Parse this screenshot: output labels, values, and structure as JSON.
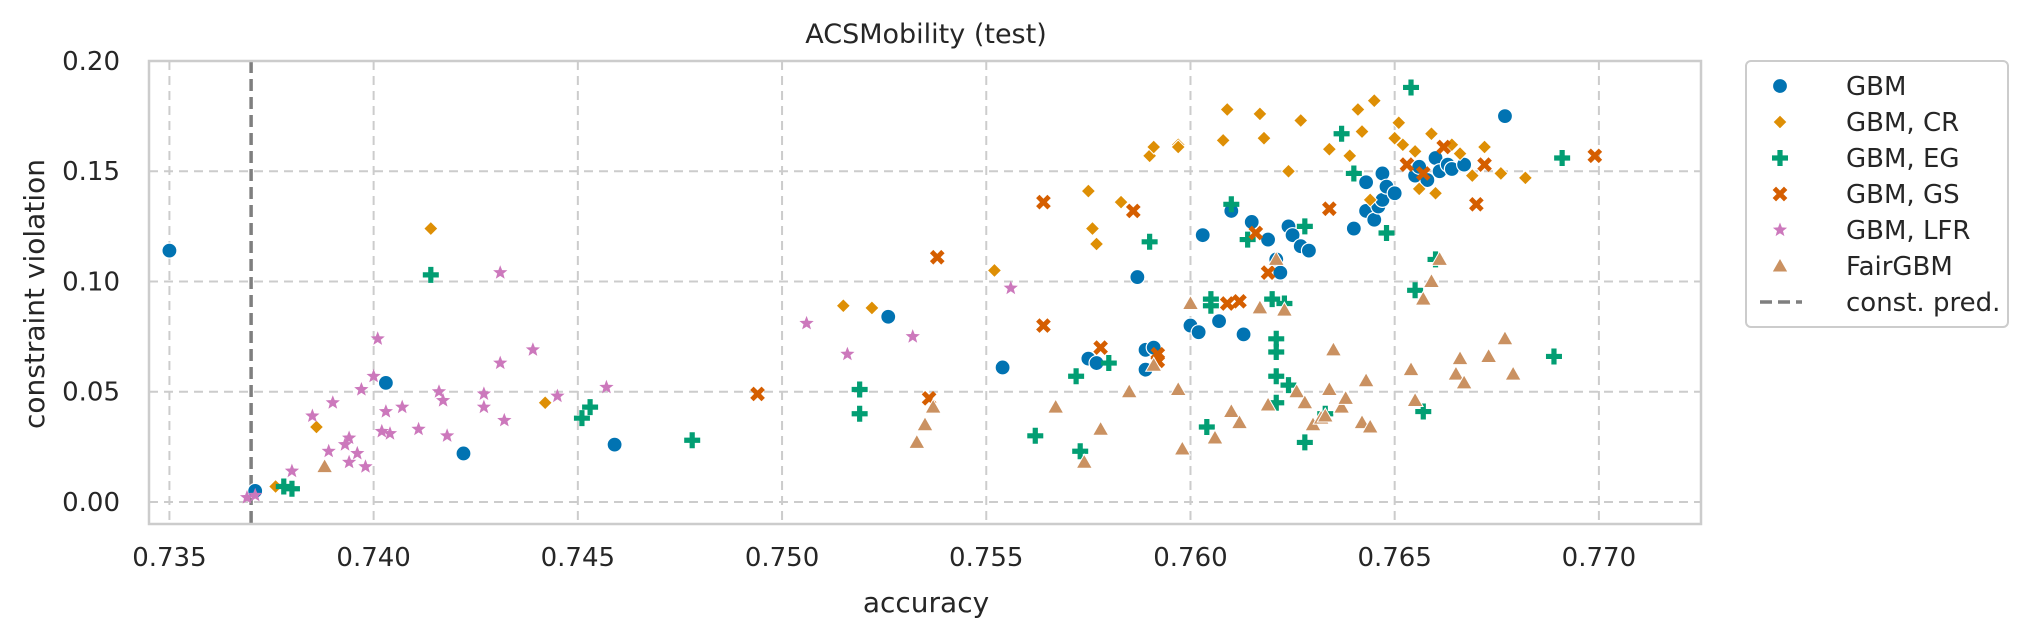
{
  "chart_data": {
    "type": "scatter",
    "title": "ACSMobility (test)",
    "xlabel": "accuracy",
    "ylabel": "constraint violation",
    "xlim": [
      0.7345,
      0.7725
    ],
    "ylim": [
      -0.01,
      0.2
    ],
    "xticks": [
      "0.735",
      "0.740",
      "0.745",
      "0.750",
      "0.755",
      "0.760",
      "0.765",
      "0.770"
    ],
    "xtick_values": [
      0.735,
      0.74,
      0.745,
      0.75,
      0.755,
      0.76,
      0.765,
      0.77
    ],
    "yticks": [
      "0.00",
      "0.05",
      "0.10",
      "0.15",
      "0.20"
    ],
    "ytick_values": [
      0.0,
      0.05,
      0.1,
      0.15,
      0.2
    ],
    "grid": true,
    "legend_position": "outside-right",
    "reference_line": {
      "name": "const. pred.",
      "x": 0.737,
      "color": "#7f7f7f"
    },
    "series": [
      {
        "name": "GBM",
        "marker": "circle",
        "color": "#0173b2",
        "points": [
          [
            0.735,
            0.114
          ],
          [
            0.7371,
            0.005
          ],
          [
            0.7403,
            0.054
          ],
          [
            0.7422,
            0.022
          ],
          [
            0.7459,
            0.026
          ],
          [
            0.7526,
            0.084
          ],
          [
            0.7554,
            0.061
          ],
          [
            0.7575,
            0.065
          ],
          [
            0.7577,
            0.063
          ],
          [
            0.7587,
            0.102
          ],
          [
            0.7589,
            0.069
          ],
          [
            0.7589,
            0.06
          ],
          [
            0.7591,
            0.07
          ],
          [
            0.76,
            0.08
          ],
          [
            0.7602,
            0.077
          ],
          [
            0.7603,
            0.121
          ],
          [
            0.7607,
            0.082
          ],
          [
            0.761,
            0.132
          ],
          [
            0.7613,
            0.076
          ],
          [
            0.7615,
            0.127
          ],
          [
            0.7619,
            0.119
          ],
          [
            0.7621,
            0.11
          ],
          [
            0.7622,
            0.104
          ],
          [
            0.7624,
            0.125
          ],
          [
            0.7625,
            0.121
          ],
          [
            0.7627,
            0.116
          ],
          [
            0.7629,
            0.114
          ],
          [
            0.764,
            0.124
          ],
          [
            0.7643,
            0.145
          ],
          [
            0.7643,
            0.132
          ],
          [
            0.7645,
            0.128
          ],
          [
            0.7646,
            0.134
          ],
          [
            0.7647,
            0.149
          ],
          [
            0.7647,
            0.137
          ],
          [
            0.7648,
            0.143
          ],
          [
            0.765,
            0.14
          ],
          [
            0.7655,
            0.148
          ],
          [
            0.7656,
            0.152
          ],
          [
            0.7658,
            0.146
          ],
          [
            0.766,
            0.156
          ],
          [
            0.7661,
            0.15
          ],
          [
            0.7663,
            0.153
          ],
          [
            0.7664,
            0.151
          ],
          [
            0.7667,
            0.153
          ],
          [
            0.7677,
            0.175
          ]
        ]
      },
      {
        "name": "GBM, CR",
        "marker": "diamond",
        "color": "#de8f05",
        "points": [
          [
            0.7376,
            0.007
          ],
          [
            0.7386,
            0.034
          ],
          [
            0.7414,
            0.124
          ],
          [
            0.7442,
            0.045
          ],
          [
            0.7515,
            0.089
          ],
          [
            0.7522,
            0.088
          ],
          [
            0.7552,
            0.105
          ],
          [
            0.7575,
            0.141
          ],
          [
            0.7576,
            0.124
          ],
          [
            0.7577,
            0.117
          ],
          [
            0.7583,
            0.136
          ],
          [
            0.759,
            0.157
          ],
          [
            0.7591,
            0.161
          ],
          [
            0.7597,
            0.162
          ],
          [
            0.7597,
            0.161
          ],
          [
            0.7608,
            0.164
          ],
          [
            0.7609,
            0.178
          ],
          [
            0.7617,
            0.176
          ],
          [
            0.7618,
            0.165
          ],
          [
            0.7624,
            0.15
          ],
          [
            0.7627,
            0.173
          ],
          [
            0.7634,
            0.16
          ],
          [
            0.7639,
            0.157
          ],
          [
            0.7641,
            0.178
          ],
          [
            0.7642,
            0.168
          ],
          [
            0.7644,
            0.137
          ],
          [
            0.7645,
            0.182
          ],
          [
            0.765,
            0.165
          ],
          [
            0.7651,
            0.172
          ],
          [
            0.7652,
            0.162
          ],
          [
            0.7655,
            0.159
          ],
          [
            0.7656,
            0.142
          ],
          [
            0.7659,
            0.167
          ],
          [
            0.766,
            0.14
          ],
          [
            0.7664,
            0.162
          ],
          [
            0.7666,
            0.158
          ],
          [
            0.7669,
            0.148
          ],
          [
            0.7672,
            0.161
          ],
          [
            0.7676,
            0.149
          ],
          [
            0.7682,
            0.147
          ]
        ]
      },
      {
        "name": "GBM, EG",
        "marker": "plus",
        "color": "#029e73",
        "points": [
          [
            0.7378,
            0.007
          ],
          [
            0.738,
            0.006
          ],
          [
            0.7414,
            0.103
          ],
          [
            0.7451,
            0.038
          ],
          [
            0.7453,
            0.043
          ],
          [
            0.7478,
            0.028
          ],
          [
            0.7519,
            0.051
          ],
          [
            0.7519,
            0.04
          ],
          [
            0.7562,
            0.03
          ],
          [
            0.7572,
            0.057
          ],
          [
            0.7573,
            0.023
          ],
          [
            0.758,
            0.063
          ],
          [
            0.759,
            0.118
          ],
          [
            0.7604,
            0.034
          ],
          [
            0.7605,
            0.092
          ],
          [
            0.7605,
            0.089
          ],
          [
            0.761,
            0.135
          ],
          [
            0.7614,
            0.119
          ],
          [
            0.762,
            0.092
          ],
          [
            0.7621,
            0.074
          ],
          [
            0.7621,
            0.068
          ],
          [
            0.7621,
            0.057
          ],
          [
            0.7621,
            0.045
          ],
          [
            0.7623,
            0.09
          ],
          [
            0.7624,
            0.053
          ],
          [
            0.7628,
            0.125
          ],
          [
            0.7628,
            0.027
          ],
          [
            0.7633,
            0.04
          ],
          [
            0.7637,
            0.167
          ],
          [
            0.764,
            0.149
          ],
          [
            0.7648,
            0.122
          ],
          [
            0.7654,
            0.188
          ],
          [
            0.7655,
            0.096
          ],
          [
            0.7657,
            0.041
          ],
          [
            0.766,
            0.11
          ],
          [
            0.7689,
            0.066
          ],
          [
            0.7691,
            0.156
          ]
        ]
      },
      {
        "name": "GBM, GS",
        "marker": "x",
        "color": "#d55e00",
        "points": [
          [
            0.7494,
            0.049
          ],
          [
            0.7536,
            0.047
          ],
          [
            0.7538,
            0.111
          ],
          [
            0.7564,
            0.136
          ],
          [
            0.7564,
            0.08
          ],
          [
            0.7578,
            0.07
          ],
          [
            0.7586,
            0.132
          ],
          [
            0.7592,
            0.067
          ],
          [
            0.7592,
            0.064
          ],
          [
            0.7609,
            0.09
          ],
          [
            0.7612,
            0.091
          ],
          [
            0.7616,
            0.122
          ],
          [
            0.7619,
            0.104
          ],
          [
            0.7634,
            0.133
          ],
          [
            0.7653,
            0.153
          ],
          [
            0.7657,
            0.149
          ],
          [
            0.7662,
            0.161
          ],
          [
            0.767,
            0.135
          ],
          [
            0.7672,
            0.153
          ],
          [
            0.7699,
            0.157
          ]
        ]
      },
      {
        "name": "GBM, LFR",
        "marker": "star",
        "color": "#cc78bc",
        "points": [
          [
            0.7369,
            0.002
          ],
          [
            0.7371,
            0.003
          ],
          [
            0.738,
            0.014
          ],
          [
            0.7385,
            0.039
          ],
          [
            0.7389,
            0.023
          ],
          [
            0.739,
            0.045
          ],
          [
            0.7393,
            0.026
          ],
          [
            0.7394,
            0.029
          ],
          [
            0.7394,
            0.018
          ],
          [
            0.7396,
            0.022
          ],
          [
            0.7397,
            0.051
          ],
          [
            0.7398,
            0.016
          ],
          [
            0.74,
            0.057
          ],
          [
            0.7401,
            0.074
          ],
          [
            0.7402,
            0.032
          ],
          [
            0.7403,
            0.041
          ],
          [
            0.7404,
            0.031
          ],
          [
            0.7407,
            0.043
          ],
          [
            0.7411,
            0.033
          ],
          [
            0.7416,
            0.05
          ],
          [
            0.7417,
            0.046
          ],
          [
            0.7418,
            0.03
          ],
          [
            0.7427,
            0.049
          ],
          [
            0.7427,
            0.043
          ],
          [
            0.7431,
            0.104
          ],
          [
            0.7431,
            0.063
          ],
          [
            0.7432,
            0.037
          ],
          [
            0.7439,
            0.069
          ],
          [
            0.7445,
            0.048
          ],
          [
            0.7457,
            0.052
          ],
          [
            0.7506,
            0.081
          ],
          [
            0.7516,
            0.067
          ],
          [
            0.7532,
            0.075
          ],
          [
            0.7556,
            0.097
          ]
        ]
      },
      {
        "name": "FairGBM",
        "marker": "triangle",
        "color": "#ca9161",
        "points": [
          [
            0.7388,
            0.016
          ],
          [
            0.7533,
            0.027
          ],
          [
            0.7535,
            0.035
          ],
          [
            0.7537,
            0.043
          ],
          [
            0.7567,
            0.043
          ],
          [
            0.7574,
            0.018
          ],
          [
            0.7578,
            0.033
          ],
          [
            0.7585,
            0.05
          ],
          [
            0.7591,
            0.062
          ],
          [
            0.7597,
            0.051
          ],
          [
            0.7598,
            0.024
          ],
          [
            0.76,
            0.09
          ],
          [
            0.7606,
            0.029
          ],
          [
            0.761,
            0.041
          ],
          [
            0.7612,
            0.036
          ],
          [
            0.7617,
            0.088
          ],
          [
            0.7619,
            0.044
          ],
          [
            0.7621,
            0.11
          ],
          [
            0.7623,
            0.087
          ],
          [
            0.7626,
            0.05
          ],
          [
            0.7628,
            0.045
          ],
          [
            0.763,
            0.035
          ],
          [
            0.7632,
            0.038
          ],
          [
            0.7633,
            0.039
          ],
          [
            0.7634,
            0.051
          ],
          [
            0.7635,
            0.069
          ],
          [
            0.7637,
            0.043
          ],
          [
            0.7638,
            0.047
          ],
          [
            0.7642,
            0.036
          ],
          [
            0.7643,
            0.055
          ],
          [
            0.7644,
            0.034
          ],
          [
            0.7654,
            0.06
          ],
          [
            0.7655,
            0.046
          ],
          [
            0.7657,
            0.092
          ],
          [
            0.7659,
            0.1
          ],
          [
            0.7661,
            0.11
          ],
          [
            0.7665,
            0.058
          ],
          [
            0.7666,
            0.065
          ],
          [
            0.7667,
            0.054
          ],
          [
            0.7673,
            0.066
          ],
          [
            0.7677,
            0.074
          ],
          [
            0.7679,
            0.058
          ]
        ]
      }
    ]
  }
}
